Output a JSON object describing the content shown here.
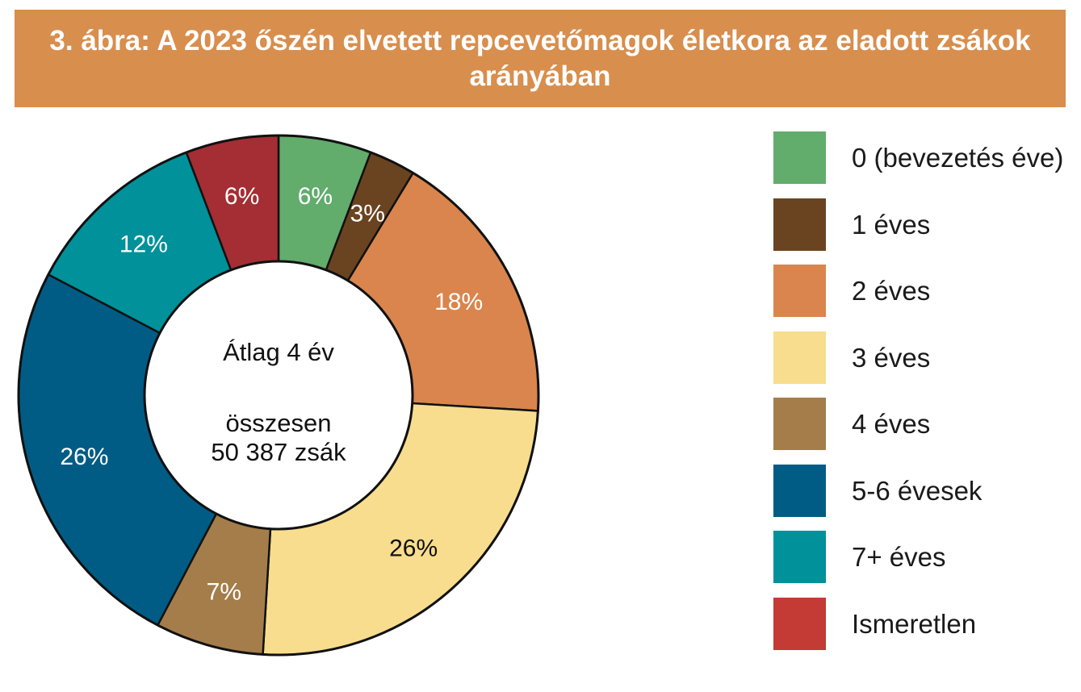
{
  "title": "3. ábra: A 2023 őszén elvetett repcevetőmagok életkora az eladott zsákok arányában",
  "center": {
    "line1": "Átlag 4 év",
    "line2": "összesen",
    "line3": "50 387 zsák"
  },
  "chart_data": {
    "type": "pie",
    "variant": "donut",
    "unit": "%",
    "categories": [
      "0 (bevezetés éve)",
      "1 éves",
      "2 éves",
      "3 éves",
      "4 éves",
      "5-6 évesek",
      "7+ éves",
      "Ismeretlen"
    ],
    "values": [
      6,
      3,
      18,
      26,
      7,
      26,
      12,
      6
    ],
    "labels": [
      "6%",
      "3%",
      "18%",
      "26%",
      "7%",
      "26%",
      "12%",
      "6%"
    ],
    "colors": [
      "#62ac6c",
      "#6a4420",
      "#d9854d",
      "#f7dd8d",
      "#a47d4a",
      "#005c85",
      "#00919a",
      "#a42e33"
    ],
    "label_colors": [
      "#ffffff",
      "#ffffff",
      "#ffffff",
      "#111111",
      "#ffffff",
      "#ffffff",
      "#ffffff",
      "#ffffff"
    ],
    "legend_colors": [
      "#62ac6c",
      "#6a4420",
      "#d9854d",
      "#f7dd8d",
      "#a47d4a",
      "#005c85",
      "#00919a",
      "#c43a34"
    ],
    "start_angle_deg": 0,
    "direction": "clockwise",
    "legend_position": "right"
  }
}
